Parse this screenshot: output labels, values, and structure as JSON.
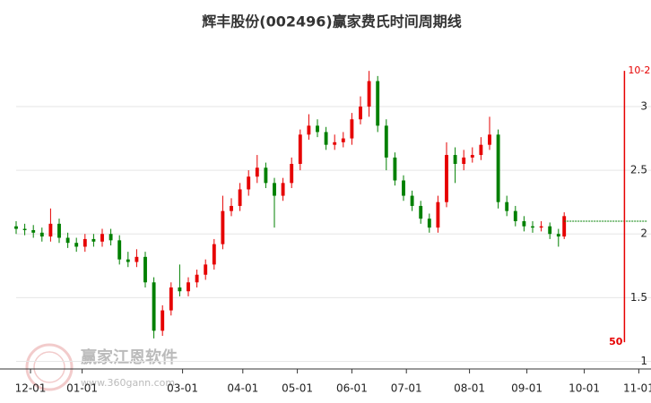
{
  "chart_data": {
    "type": "candlestick",
    "title": "辉丰股份(002496)赢家费氏时间周期线",
    "x": [
      0,
      3,
      6,
      9,
      12,
      15,
      18,
      21,
      24,
      27,
      30,
      33,
      36,
      39,
      42,
      45,
      48,
      51,
      54,
      57,
      60,
      63,
      66,
      69,
      72,
      75,
      78,
      81,
      84,
      87,
      90,
      93,
      96,
      99,
      102,
      105,
      108,
      111,
      114,
      117,
      120,
      123,
      126,
      129,
      132,
      135,
      138,
      141,
      144,
      147,
      150,
      153,
      156,
      159,
      162,
      165,
      168,
      171,
      174,
      177,
      180,
      183,
      186,
      189,
      191
    ],
    "open": [
      2.06,
      2.04,
      2.03,
      2.01,
      1.98,
      2.08,
      1.97,
      1.93,
      1.9,
      1.96,
      1.94,
      2.0,
      1.95,
      1.8,
      1.78,
      1.82,
      1.62,
      1.24,
      1.4,
      1.58,
      1.55,
      1.62,
      1.68,
      1.76,
      1.92,
      2.18,
      2.22,
      2.35,
      2.45,
      2.52,
      2.4,
      2.3,
      2.4,
      2.55,
      2.78,
      2.85,
      2.8,
      2.7,
      2.72,
      2.75,
      2.9,
      3.0,
      3.2,
      2.85,
      2.6,
      2.42,
      2.3,
      2.22,
      2.12,
      2.05,
      2.25,
      2.62,
      2.55,
      2.6,
      2.62,
      2.7,
      2.78,
      2.25,
      2.18,
      2.1,
      2.06,
      2.05,
      2.06,
      2.0,
      1.98
    ],
    "high": [
      2.1,
      2.08,
      2.07,
      2.05,
      2.2,
      2.12,
      2.01,
      1.97,
      2.0,
      2.0,
      2.04,
      2.04,
      1.99,
      1.86,
      1.88,
      1.86,
      1.66,
      1.44,
      1.62,
      1.76,
      1.66,
      1.72,
      1.8,
      1.96,
      2.3,
      2.28,
      2.4,
      2.5,
      2.62,
      2.56,
      2.44,
      2.44,
      2.6,
      2.82,
      2.94,
      2.9,
      2.84,
      2.78,
      2.8,
      2.95,
      3.08,
      3.28,
      3.24,
      2.9,
      2.64,
      2.46,
      2.34,
      2.26,
      2.16,
      2.3,
      2.72,
      2.68,
      2.66,
      2.68,
      2.76,
      2.92,
      2.82,
      2.3,
      2.22,
      2.14,
      2.1,
      2.1,
      2.09,
      2.04,
      2.17
    ],
    "low": [
      2.0,
      1.99,
      1.97,
      1.94,
      1.94,
      1.93,
      1.89,
      1.86,
      1.86,
      1.9,
      1.9,
      1.91,
      1.76,
      1.74,
      1.74,
      1.58,
      1.18,
      1.2,
      1.36,
      1.51,
      1.51,
      1.58,
      1.64,
      1.72,
      1.88,
      2.14,
      2.18,
      2.3,
      2.4,
      2.36,
      2.05,
      2.26,
      2.36,
      2.5,
      2.74,
      2.76,
      2.66,
      2.66,
      2.68,
      2.7,
      2.86,
      2.92,
      2.8,
      2.5,
      2.38,
      2.26,
      2.18,
      2.08,
      2.01,
      2.01,
      2.21,
      2.4,
      2.5,
      2.56,
      2.58,
      2.66,
      2.2,
      2.14,
      2.06,
      2.02,
      2.01,
      2.02,
      1.96,
      1.9,
      1.96
    ],
    "close": [
      2.04,
      2.03,
      2.01,
      1.98,
      2.08,
      1.97,
      1.93,
      1.9,
      1.96,
      1.94,
      2.0,
      1.95,
      1.8,
      1.78,
      1.82,
      1.62,
      1.24,
      1.4,
      1.58,
      1.55,
      1.62,
      1.68,
      1.76,
      1.92,
      2.18,
      2.22,
      2.35,
      2.45,
      2.52,
      2.4,
      2.3,
      2.4,
      2.55,
      2.78,
      2.85,
      2.8,
      2.7,
      2.72,
      2.75,
      2.9,
      3.0,
      3.2,
      2.85,
      2.6,
      2.42,
      2.3,
      2.22,
      2.12,
      2.05,
      2.25,
      2.62,
      2.55,
      2.6,
      2.62,
      2.7,
      2.78,
      2.25,
      2.18,
      2.1,
      2.06,
      2.05,
      2.06,
      2.0,
      1.98,
      2.14
    ],
    "up_color": "#e60000",
    "down_color": "#008000",
    "xlim": [
      0,
      220
    ],
    "xticks": [
      {
        "value": 5,
        "label": "12-01"
      },
      {
        "value": 23,
        "label": "01-01"
      },
      {
        "value": 58,
        "label": "03-01"
      },
      {
        "value": 79,
        "label": "04-01"
      },
      {
        "value": 98,
        "label": "05-01"
      },
      {
        "value": 117,
        "label": "06-01"
      },
      {
        "value": 136,
        "label": "07-01"
      },
      {
        "value": 158,
        "label": "08-01"
      },
      {
        "value": 178,
        "label": "09-01"
      },
      {
        "value": 198,
        "label": "10-01"
      },
      {
        "value": 217,
        "label": "11-01"
      }
    ],
    "ylim": [
      0.94,
      3.45
    ],
    "yticks": [
      1,
      1.5,
      2,
      2.5,
      3
    ],
    "grid": true,
    "reference_line": {
      "value": 2.1,
      "x": [
        191,
        220
      ],
      "color": "#008000"
    },
    "cycle_line": {
      "x": 212,
      "top": 3.28,
      "bottom": 1.15,
      "color": "#e60000",
      "label_top": "10-2",
      "label_bottom": "50"
    },
    "watermark": {
      "text": "赢家江恩软件",
      "url": "www.360gann.com"
    }
  }
}
